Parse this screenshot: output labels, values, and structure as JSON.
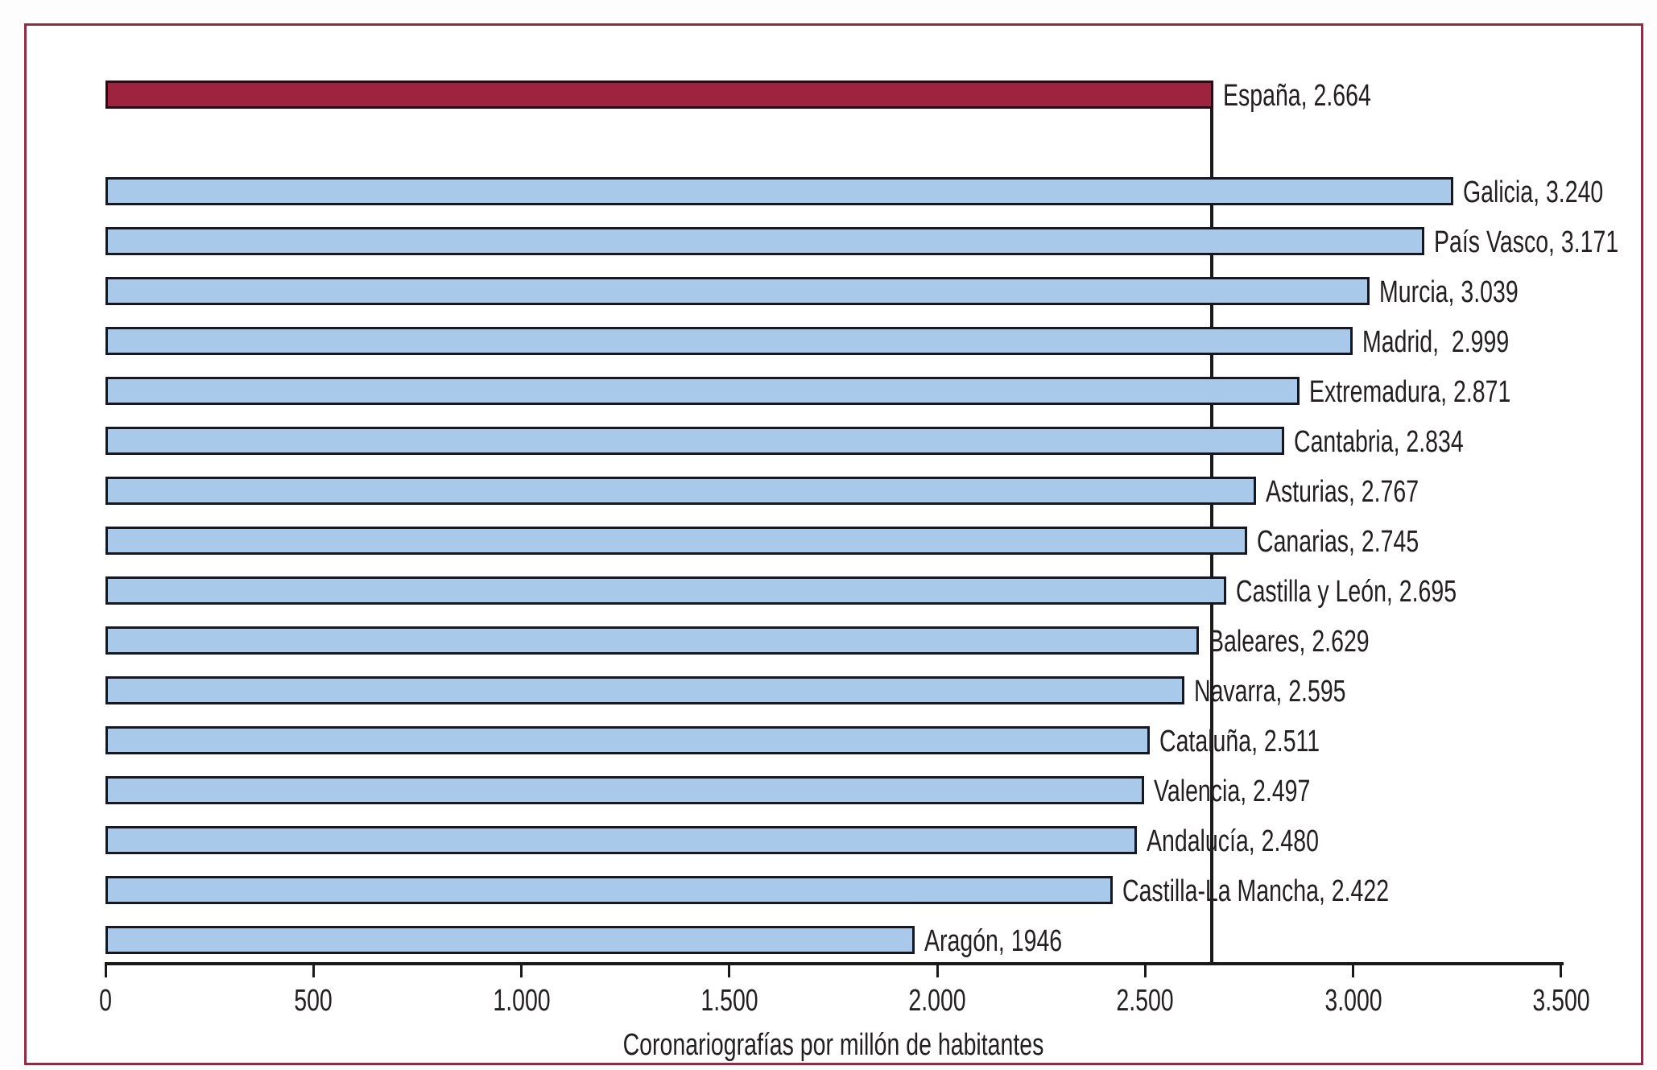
{
  "figure": {
    "frame_color": "#8c2d43",
    "background": "#ffffff",
    "text_color": "#231f20",
    "axis_color": "#1a1a1a"
  },
  "chart_data": {
    "type": "bar",
    "orientation": "horizontal",
    "title": "",
    "xlabel": "Coronariografías por millón de habitantes",
    "ylabel": "",
    "xlim": [
      0,
      3500
    ],
    "grid": false,
    "legend": "none",
    "x_ticks": [
      {
        "value": 0,
        "label": "0"
      },
      {
        "value": 500,
        "label": "500"
      },
      {
        "value": 1000,
        "label": "1.000"
      },
      {
        "value": 1500,
        "label": "1.500"
      },
      {
        "value": 2000,
        "label": "2.000"
      },
      {
        "value": 2500,
        "label": "2.500"
      },
      {
        "value": 3000,
        "label": "3.000"
      },
      {
        "value": 3500,
        "label": "3.500"
      }
    ],
    "reference_line": {
      "value": 2664,
      "color": "#1a1a1a"
    },
    "bar_fill_default": "#a8c9e9",
    "bar_fill_highlight": "#9e233e",
    "bar_border_default": "#151823",
    "bar_border_highlight": "#2b0a14",
    "bars": [
      {
        "category": "España",
        "value": 2664,
        "label": "España, 2.664",
        "highlight": true
      },
      {
        "category": "Galicia",
        "value": 3240,
        "label": "Galicia, 3.240",
        "highlight": false
      },
      {
        "category": "País Vasco",
        "value": 3171,
        "label": "País Vasco, 3.171",
        "highlight": false
      },
      {
        "category": "Murcia",
        "value": 3039,
        "label": "Murcia, 3.039",
        "highlight": false
      },
      {
        "category": "Madrid",
        "value": 2999,
        "label": "Madrid,  2.999",
        "highlight": false
      },
      {
        "category": "Extremadura",
        "value": 2871,
        "label": "Extremadura, 2.871",
        "highlight": false
      },
      {
        "category": "Cantabria",
        "value": 2834,
        "label": "Cantabria, 2.834",
        "highlight": false
      },
      {
        "category": "Asturias",
        "value": 2767,
        "label": "Asturias, 2.767",
        "highlight": false
      },
      {
        "category": "Canarias",
        "value": 2745,
        "label": "Canarias, 2.745",
        "highlight": false
      },
      {
        "category": "Castilla y León",
        "value": 2695,
        "label": "Castilla y León, 2.695",
        "highlight": false
      },
      {
        "category": "Baleares",
        "value": 2629,
        "label": "Baleares, 2.629",
        "highlight": false
      },
      {
        "category": "Navarra",
        "value": 2595,
        "label": "Navarra, 2.595",
        "highlight": false
      },
      {
        "category": "Cataluña",
        "value": 2511,
        "label": "Cataluña, 2.511",
        "highlight": false
      },
      {
        "category": "Valencia",
        "value": 2497,
        "label": "Valencia, 2.497",
        "highlight": false
      },
      {
        "category": "Andalucía",
        "value": 2480,
        "label": "Andalucía, 2.480",
        "highlight": false
      },
      {
        "category": "Castilla-La Mancha",
        "value": 2422,
        "label": "Castilla-La Mancha, 2.422",
        "highlight": false
      },
      {
        "category": "Aragón",
        "value": 1946,
        "label": "Aragón, 1946",
        "highlight": false
      }
    ]
  }
}
